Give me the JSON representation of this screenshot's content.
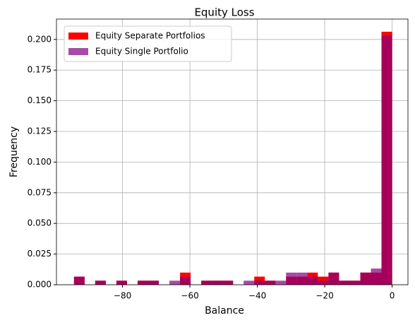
{
  "chart_data": {
    "type": "histogram",
    "title": "Equity Loss",
    "x_label": "Balance",
    "y_label": "Frequency",
    "bins": [
      -94.4,
      -91.25,
      -88.11,
      -84.96,
      -81.81,
      -78.67,
      -75.52,
      -72.37,
      -69.23,
      -66.08,
      -62.93,
      -59.79,
      -56.64,
      -53.49,
      -50.35,
      -47.2,
      -44.05,
      -40.91,
      -37.76,
      -34.61,
      -31.47,
      -28.32,
      -25.17,
      -22.03,
      -18.88,
      -15.73,
      -12.59,
      -9.44,
      -6.29,
      -3.15,
      0
    ],
    "series": [
      {
        "name": "Equity Separate Portfolios",
        "color": "#ff0000",
        "alpha": 1,
        "values": [
          0.0066,
          0,
          0.0033,
          0,
          0.0033,
          0,
          0.0033,
          0.0033,
          0,
          0,
          0.0099,
          0,
          0.0033,
          0.0033,
          0.0033,
          0,
          0,
          0.0066,
          0.0033,
          0,
          0.0066,
          0.0066,
          0.0099,
          0.0066,
          0.0099,
          0.0033,
          0.0033,
          0.0099,
          0.0099,
          0.2063
        ]
      },
      {
        "name": "Equity Single Portfolio",
        "color": "#800080",
        "alpha": 0.7,
        "values": [
          0.0066,
          0,
          0.0033,
          0,
          0.0033,
          0,
          0.0033,
          0.0033,
          0,
          0.0033,
          0.0066,
          0,
          0.0033,
          0.0033,
          0.0033,
          0,
          0.0033,
          0.0033,
          0.0033,
          0.0033,
          0.0099,
          0.0099,
          0.0066,
          0.0033,
          0.0099,
          0.0033,
          0.0033,
          0.0099,
          0.0132,
          0.203
        ]
      }
    ],
    "xlim": [
      -99.6,
      4.7
    ],
    "ylim": [
      0,
      0.2166
    ],
    "xticks": [
      {
        "value": -80,
        "label": "−80"
      },
      {
        "value": -60,
        "label": "−60"
      },
      {
        "value": -40,
        "label": "−40"
      },
      {
        "value": -20,
        "label": "−20"
      },
      0
    ],
    "yticks": [
      {
        "value": 0,
        "label": "0.000"
      },
      {
        "value": 0.025,
        "label": "0.025"
      },
      {
        "value": 0.05,
        "label": "0.050"
      },
      {
        "value": 0.075,
        "label": "0.075"
      },
      {
        "value": 0.1,
        "label": "0.100"
      },
      {
        "value": 0.125,
        "label": "0.125"
      },
      {
        "value": 0.15,
        "label": "0.150"
      },
      {
        "value": 0.175,
        "label": "0.175"
      },
      {
        "value": 0.2,
        "label": "0.200"
      }
    ],
    "grid": true,
    "legend": "upper left"
  }
}
